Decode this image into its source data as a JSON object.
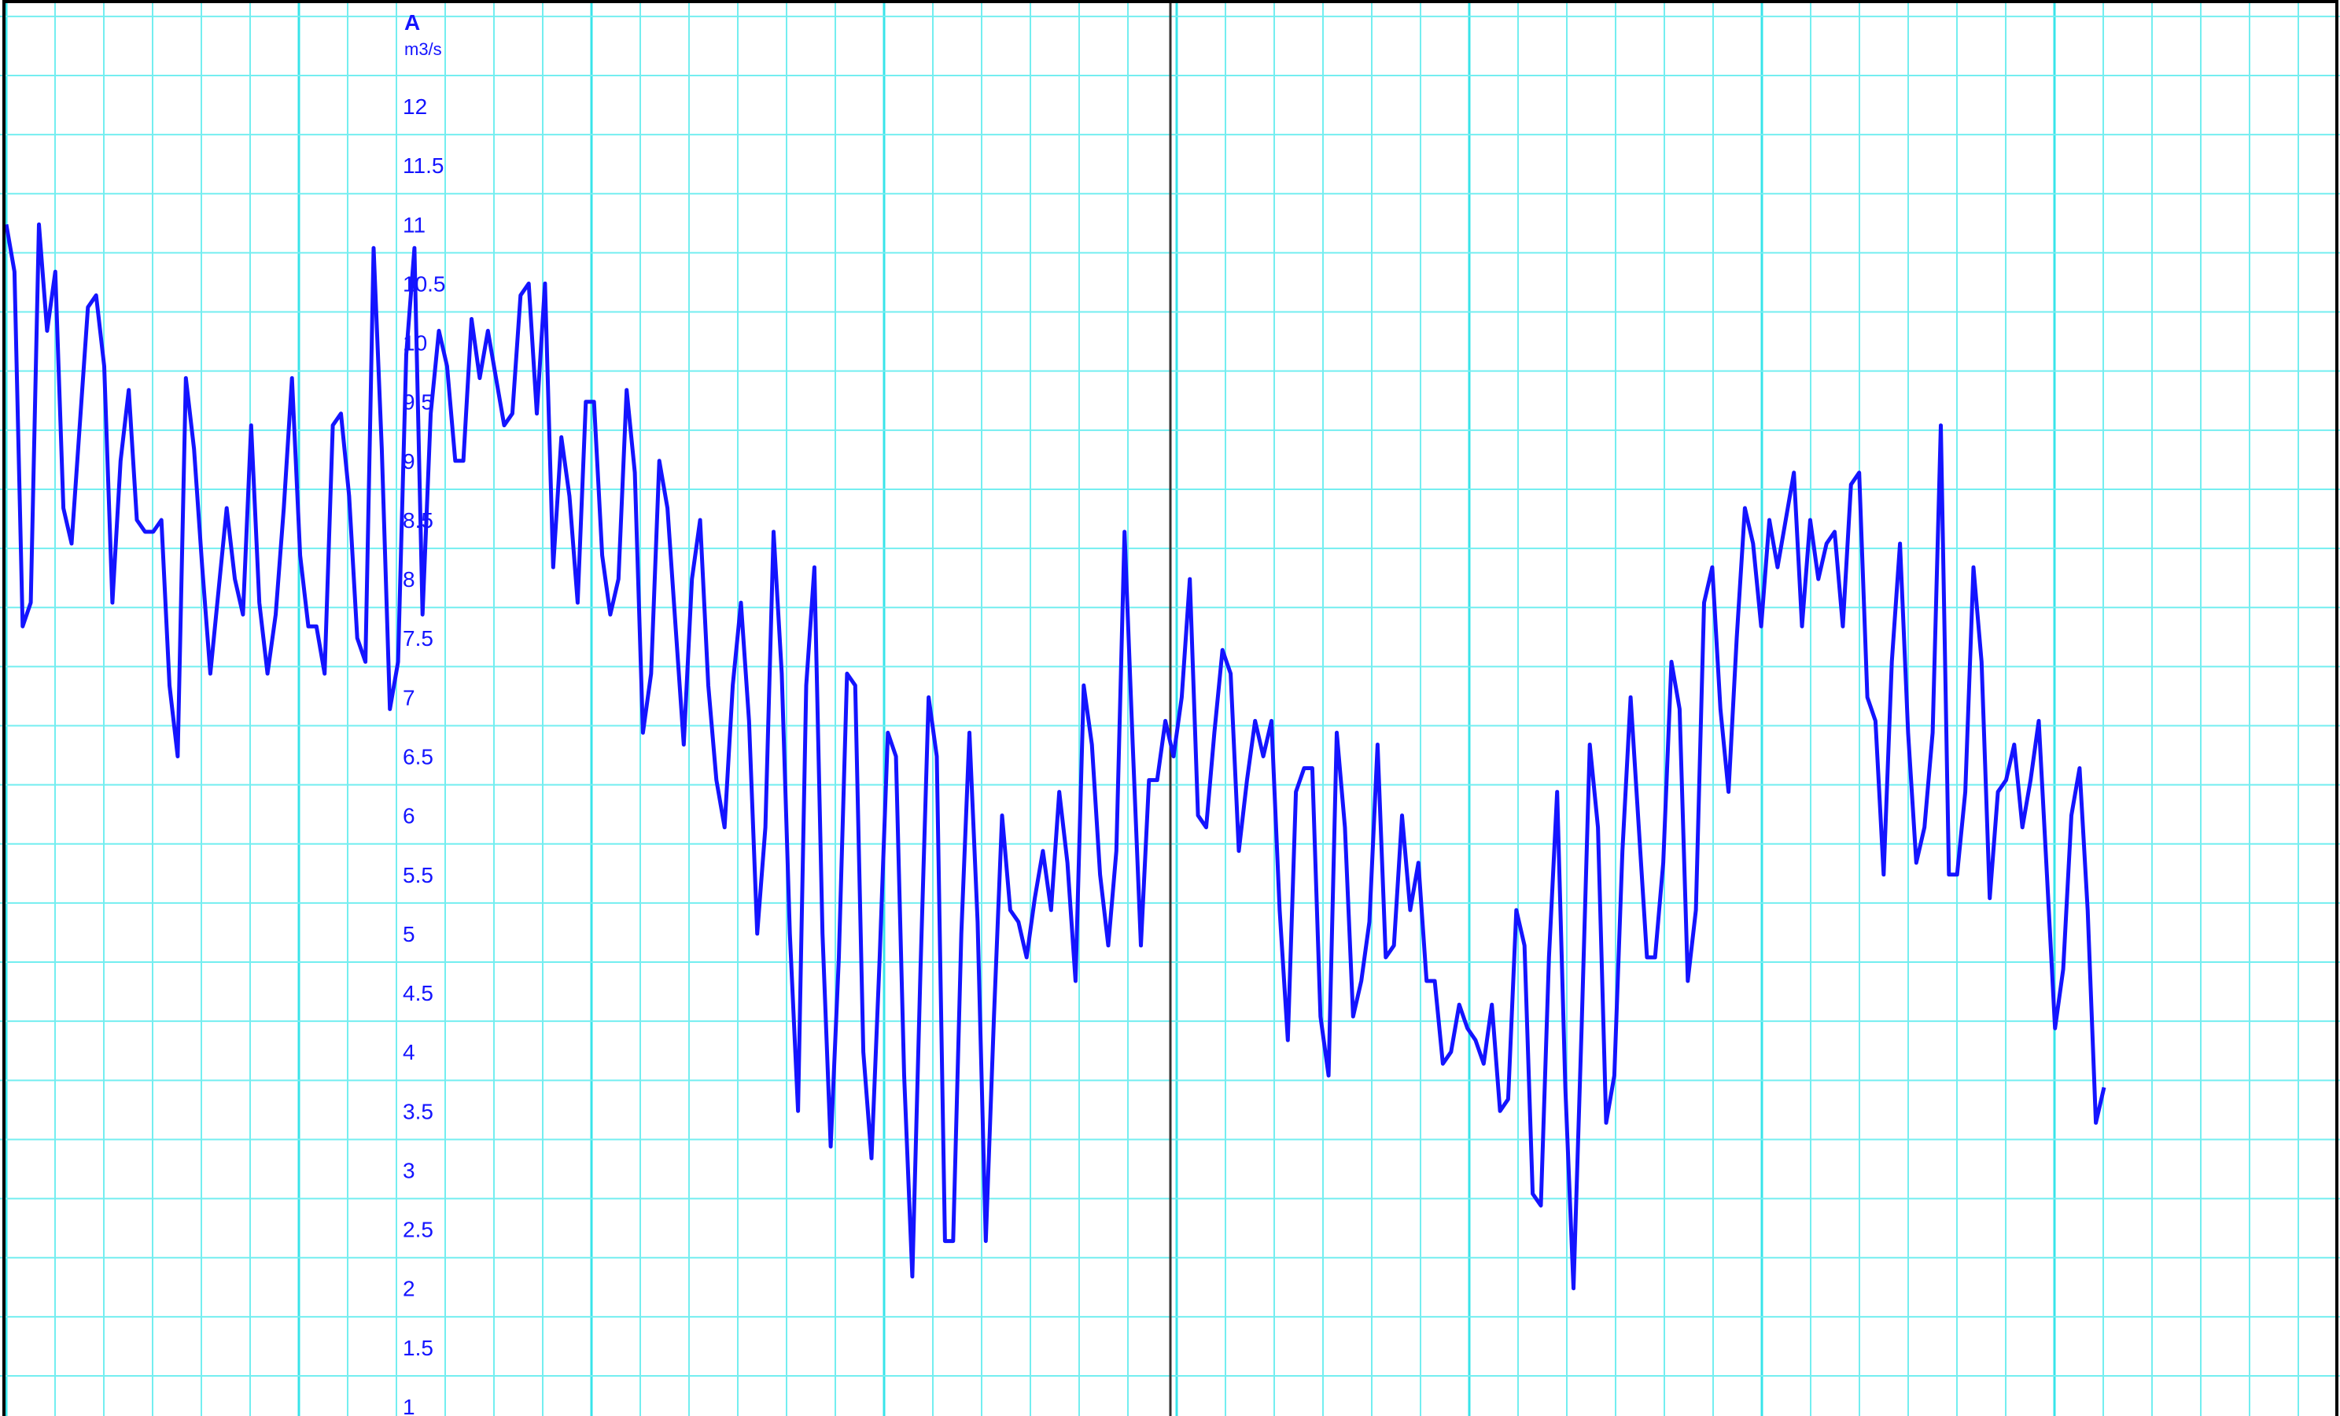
{
  "chart_data": {
    "type": "line",
    "title": "",
    "xlabel": "",
    "ylabel": "A",
    "y_unit": "m3/s",
    "ylim": [
      1,
      12.5
    ],
    "y_ticks": [
      "1",
      "1.5",
      "2",
      "2.5",
      "3",
      "3.5",
      "4",
      "4.5",
      "5",
      "5.5",
      "6",
      "6.5",
      "7",
      "7.5",
      "8",
      "8.5",
      "9",
      "9.5",
      "10",
      "10.5",
      "11",
      "11.5",
      "12"
    ],
    "grid": true,
    "colors": {
      "series": "#1414ff",
      "grid_minor": "#74eef0",
      "grid_major": "#38e4ea",
      "marker_line": "#333333",
      "border": "#000000",
      "labels": "#1414ff"
    },
    "series": [
      {
        "values": [
          11.0,
          10.6,
          7.6,
          7.8,
          11.0,
          10.1,
          10.6,
          8.6,
          8.3,
          9.3,
          10.3,
          10.4,
          9.8,
          7.8,
          9.0,
          9.6,
          8.5,
          8.4,
          8.4,
          8.5,
          7.1,
          6.5,
          9.7,
          9.1,
          8.1,
          7.2,
          7.9,
          8.6,
          8.0,
          7.7,
          9.3,
          7.8,
          7.2,
          7.7,
          8.6,
          9.7,
          8.2,
          7.6,
          7.6,
          7.2,
          9.3,
          9.4,
          8.7,
          7.5,
          7.3,
          10.8,
          9.1,
          6.9,
          7.3,
          9.9,
          10.8,
          7.7,
          9.4,
          10.1,
          9.8,
          9.0,
          9.0,
          10.2,
          9.7,
          10.1,
          9.7,
          9.3,
          9.4,
          10.4,
          10.5,
          9.4,
          10.5,
          8.1,
          9.2,
          8.7,
          7.8,
          9.5,
          9.5,
          8.2,
          7.7,
          8.0,
          9.6,
          8.9,
          6.7,
          7.2,
          9.0,
          8.6,
          7.6,
          6.6,
          8.0,
          8.5,
          7.1,
          6.3,
          5.9,
          7.1,
          7.8,
          6.8,
          5.0,
          5.9,
          8.4,
          7.2,
          5.0,
          3.5,
          7.1,
          8.1,
          5.0,
          3.2,
          4.8,
          7.2,
          7.1,
          4.0,
          3.1,
          4.8,
          6.7,
          6.5,
          3.8,
          2.1,
          4.7,
          7.0,
          6.5,
          2.4,
          2.4,
          5.0,
          6.7,
          5.1,
          2.4,
          4.3,
          6.0,
          5.2,
          5.1,
          4.8,
          5.3,
          5.7,
          5.2,
          6.2,
          5.6,
          4.6,
          7.1,
          6.6,
          5.5,
          4.9,
          5.7,
          8.4,
          6.6,
          4.9,
          6.3,
          6.3,
          6.8,
          6.5,
          7.0,
          8.0,
          6.0,
          5.9,
          6.7,
          7.4,
          7.2,
          5.7,
          6.3,
          6.8,
          6.5,
          6.8,
          5.2,
          4.1,
          6.2,
          6.4,
          6.4,
          4.3,
          3.8,
          6.7,
          5.9,
          4.3,
          4.6,
          5.1,
          6.6,
          4.8,
          4.9,
          6.0,
          5.2,
          5.6,
          4.6,
          4.6,
          3.9,
          4.0,
          4.4,
          4.2,
          4.1,
          3.9,
          4.4,
          3.5,
          3.6,
          5.2,
          4.9,
          2.8,
          2.7,
          4.8,
          6.2,
          3.7,
          2.0,
          4.2,
          6.6,
          5.9,
          3.4,
          3.8,
          5.7,
          7.0,
          5.9,
          4.8,
          4.8,
          5.6,
          7.3,
          6.9,
          4.6,
          5.2,
          7.8,
          8.1,
          6.9,
          6.2,
          7.5,
          8.6,
          8.3,
          7.6,
          8.5,
          8.1,
          8.5,
          8.9,
          7.6,
          8.5,
          8.0,
          8.3,
          8.4,
          7.6,
          8.8,
          8.9,
          7.0,
          6.8,
          5.5,
          7.3,
          8.3,
          6.7,
          5.6,
          5.9,
          6.7,
          9.3,
          5.5,
          5.5,
          6.2,
          8.1,
          7.3,
          5.3,
          6.2,
          6.3,
          6.6,
          5.9,
          6.3,
          6.8,
          5.5,
          4.2,
          4.7,
          6.0,
          6.4,
          5.2,
          3.4,
          3.7
        ]
      }
    ]
  }
}
